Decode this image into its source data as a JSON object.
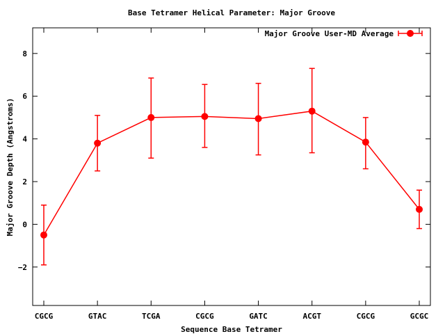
{
  "chart_data": {
    "type": "line",
    "title": "Base Tetramer Helical Parameter: Major Groove",
    "xlabel": "Sequence Base Tetramer",
    "ylabel": "Major Groove Depth (Angstroms)",
    "categories": [
      "CGCG",
      "GTAC",
      "TCGA",
      "CGCG",
      "GATC",
      "ACGT",
      "CGCG",
      "GCGC"
    ],
    "ylim": [
      -3.8,
      9.2
    ],
    "yticks": [
      -2,
      0,
      2,
      4,
      6,
      8
    ],
    "grid": false,
    "legend_position": "top-right",
    "series": [
      {
        "name": "Major Groove User-MD Average",
        "color": "#ff0000",
        "values": [
          -0.5,
          3.8,
          5.0,
          5.05,
          4.95,
          5.3,
          3.85,
          0.7
        ],
        "error_low": [
          -1.9,
          2.5,
          3.1,
          3.6,
          3.25,
          3.35,
          2.6,
          -0.2
        ],
        "error_high": [
          0.9,
          5.1,
          6.85,
          6.55,
          6.6,
          7.3,
          5.0,
          1.6
        ]
      }
    ]
  }
}
